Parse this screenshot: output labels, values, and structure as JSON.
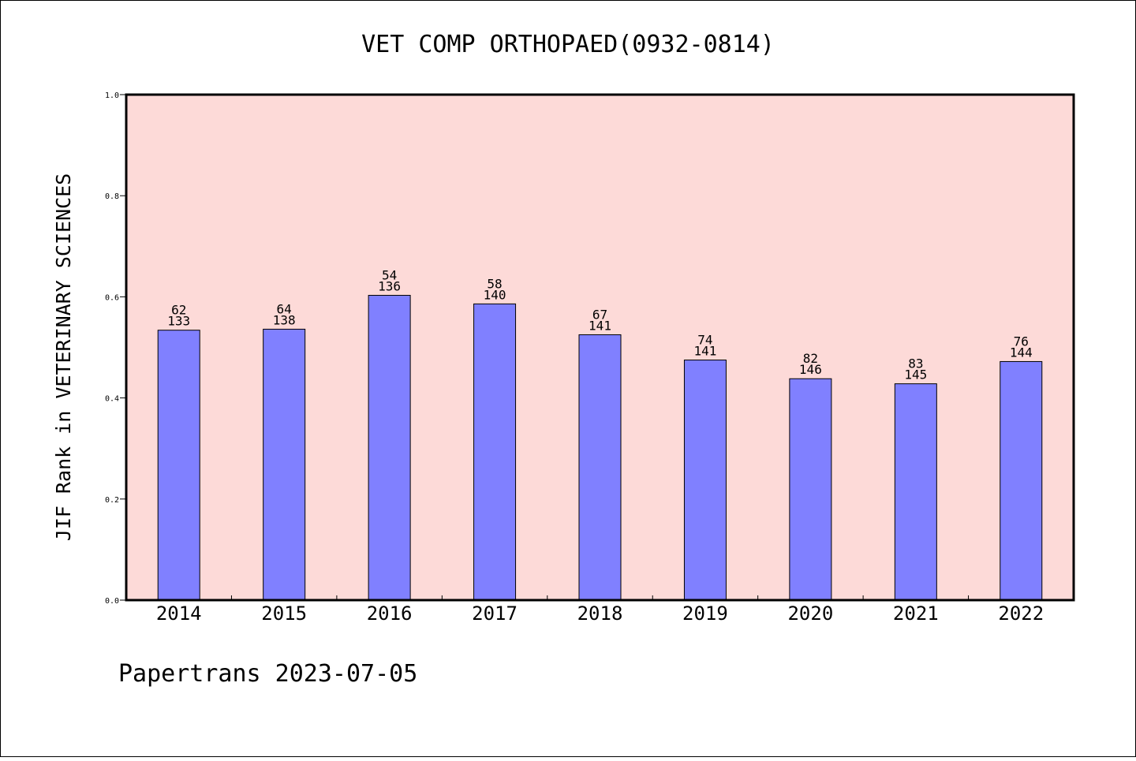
{
  "chart_data": {
    "type": "bar",
    "title": "VET COMP ORTHOPAED(0932-0814)",
    "xlabel": "",
    "ylabel": "JIF Rank in VETERINARY SCIENCES",
    "ylim": [
      0,
      1.0
    ],
    "yticks": [
      "0.0",
      "0.2",
      "0.4",
      "0.6",
      "0.8",
      "1.0"
    ],
    "ytick_values": [
      0,
      0.2,
      0.4,
      0.6,
      0.8,
      1.0
    ],
    "categories": [
      "2014",
      "2015",
      "2016",
      "2017",
      "2018",
      "2019",
      "2020",
      "2021",
      "2022"
    ],
    "values": [
      0.534,
      0.536,
      0.603,
      0.586,
      0.525,
      0.475,
      0.438,
      0.428,
      0.472
    ],
    "ranks": [
      "62",
      "64",
      "54",
      "58",
      "67",
      "74",
      "82",
      "83",
      "76"
    ],
    "totals": [
      "133",
      "138",
      "136",
      "140",
      "141",
      "141",
      "146",
      "145",
      "144"
    ],
    "grid": false,
    "colors": {
      "plot_background": "#fddad8",
      "bar_fill": "#8080ff",
      "bar_stroke": "#000000",
      "frame": "#000000"
    }
  },
  "footer": {
    "source_label": "Papertrans 2023-07-05"
  }
}
